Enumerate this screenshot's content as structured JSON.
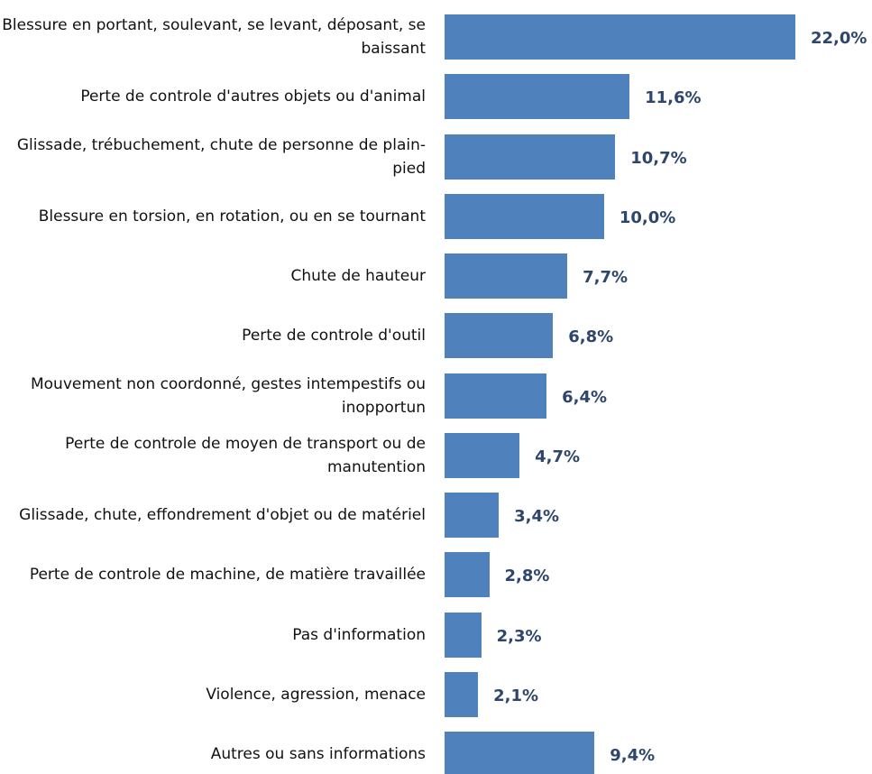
{
  "chart_data": {
    "type": "bar",
    "orientation": "horizontal",
    "categories": [
      "Blessure en portant, soulevant, se levant, déposant, se baissant",
      "Perte de controle d'autres objets ou d'animal",
      "Glissade, trébuchement, chute de personne de plain-pied",
      "Blessure en torsion, en rotation, ou en se tournant",
      "Chute de hauteur",
      "Perte de controle d'outil",
      "Mouvement non coordonné, gestes intempestifs ou inopportun",
      "Perte de controle de moyen de transport ou de manutention",
      "Glissade, chute, effondrement d'objet ou de matériel",
      "Perte de controle de machine, de matière travaillée",
      "Pas d'information",
      "Violence, agression, menace",
      "Autres ou sans informations"
    ],
    "values": [
      22.0,
      11.6,
      10.7,
      10.0,
      7.7,
      6.8,
      6.4,
      4.7,
      3.4,
      2.8,
      2.3,
      2.1,
      9.4
    ],
    "value_labels": [
      "22,0%",
      "11,6%",
      "10,7%",
      "10,0%",
      "7,7%",
      "6,8%",
      "6,4%",
      "4,7%",
      "3,4%",
      "2,8%",
      "2,3%",
      "2,1%",
      "9,4%"
    ],
    "color": "#4f81bd",
    "label_color": "#2e466b",
    "xlim": [
      0,
      22
    ]
  }
}
